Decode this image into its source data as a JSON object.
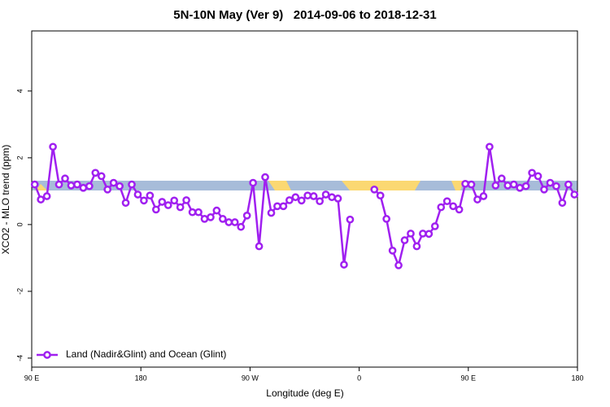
{
  "chart_data": {
    "type": "line",
    "title": "5N-10N May (Ver 9)   2014-09-06 to 2018-12-31",
    "xlabel": "Longitude (deg E)",
    "ylabel": "XCO2 - MLO trend (ppm)",
    "x": [
      92.5,
      97.5,
      102.5,
      107.5,
      112.5,
      117.5,
      122.5,
      127.5,
      132.5,
      137.5,
      142.5,
      147.5,
      152.5,
      157.5,
      162.5,
      167.5,
      172.5,
      177.5,
      182.5,
      187.5,
      192.5,
      197.5,
      202.5,
      207.5,
      212.5,
      217.5,
      222.5,
      227.5,
      232.5,
      237.5,
      242.5,
      247.5,
      252.5,
      257.5,
      262.5,
      267.5,
      272.5,
      277.5,
      282.5,
      287.5,
      292.5,
      297.5,
      302.5,
      307.5,
      312.5,
      317.5,
      322.5,
      327.5,
      332.5,
      337.5,
      342.5,
      347.5,
      352.5,
      357.5,
      362.5,
      367.5,
      372.5,
      377.5,
      382.5,
      387.5,
      392.5,
      397.5,
      402.5,
      407.5,
      412.5,
      417.5,
      422.5,
      427.5,
      432.5,
      437.5,
      442.5,
      447.5,
      452.5,
      457.5,
      462.5,
      467.5,
      472.5,
      477.5,
      482.5,
      487.5,
      492.5,
      497.5,
      502.5,
      507.5,
      512.5,
      517.5,
      522.5,
      527.5,
      532.5,
      537.5
    ],
    "series": [
      {
        "name": "Land (Nadir&Glint) and Ocean (Glint)",
        "color": "#a020f0",
        "values": [
          1.2,
          0.75,
          0.85,
          2.33,
          1.2,
          1.38,
          1.17,
          1.2,
          1.1,
          1.15,
          1.55,
          1.45,
          1.05,
          1.25,
          1.15,
          0.65,
          1.2,
          0.9,
          0.72,
          0.87,
          0.45,
          0.68,
          0.58,
          0.72,
          0.52,
          0.73,
          0.37,
          0.37,
          0.17,
          0.22,
          0.42,
          0.17,
          0.07,
          0.07,
          -0.07,
          0.27,
          1.25,
          -0.65,
          1.42,
          0.35,
          0.55,
          0.55,
          0.73,
          0.82,
          0.72,
          0.87,
          0.85,
          0.7,
          0.9,
          0.82,
          0.78,
          -1.2,
          0.15,
          null,
          null,
          null,
          1.05,
          0.87,
          0.17,
          -0.78,
          -1.22,
          -0.47,
          -0.27,
          -0.65,
          -0.27,
          -0.28,
          -0.05,
          0.52,
          0.7,
          0.55,
          0.45,
          1.22,
          1.2,
          0.75,
          0.85,
          2.33,
          1.17,
          1.38,
          1.17,
          1.2,
          1.1,
          1.15,
          1.55,
          1.45,
          1.05,
          1.25,
          1.15,
          0.65,
          1.2,
          0.9
        ]
      }
    ],
    "xlim": [
      90,
      540
    ],
    "xticks": [
      {
        "value": 90,
        "label": "90 E"
      },
      180,
      {
        "value": 270,
        "label": "90 W"
      },
      {
        "value": 360,
        "label": "0"
      },
      {
        "value": 450,
        "label": "90 E"
      },
      {
        "value": 540,
        "label": "180"
      }
    ],
    "ylim": [
      -4.27,
      5.8
    ],
    "yticks": [
      -4,
      -2,
      0,
      2,
      4
    ],
    "legend": "bottom-left"
  }
}
